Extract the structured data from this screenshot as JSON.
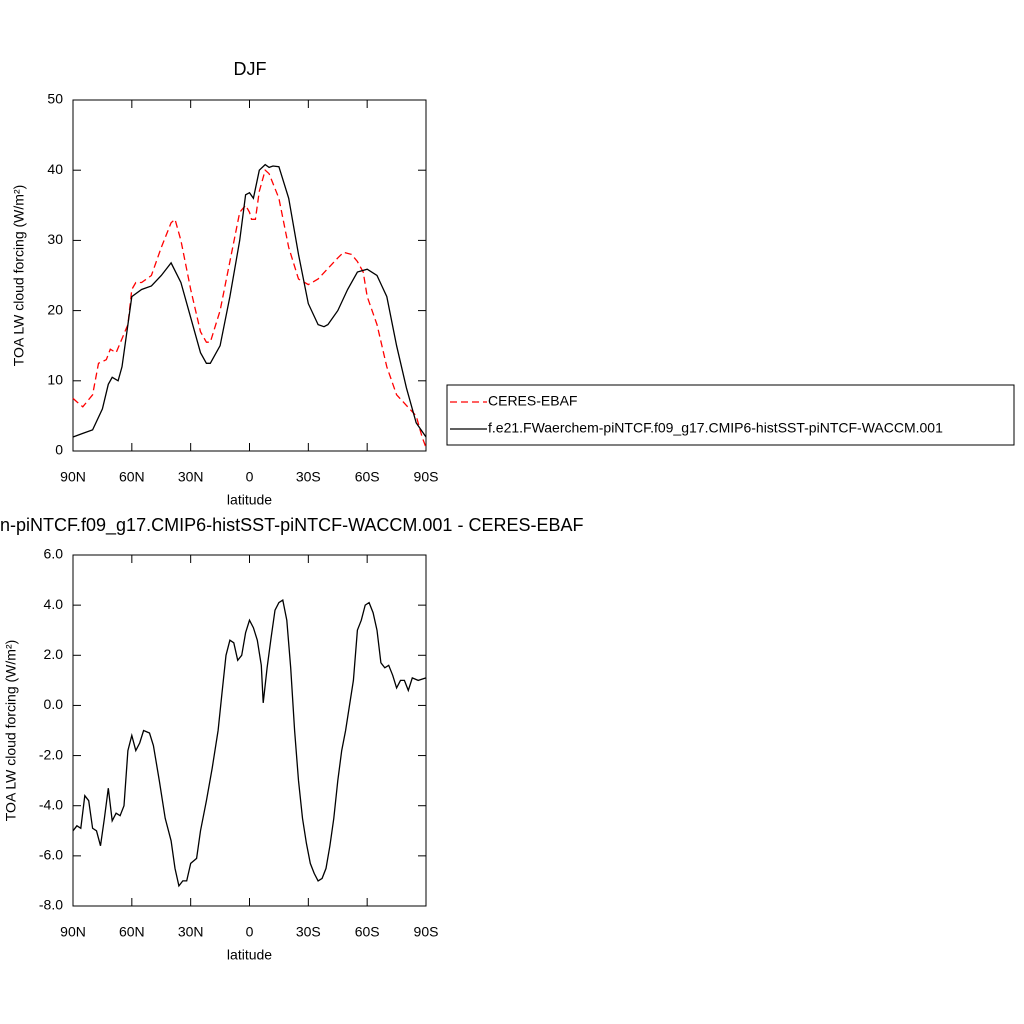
{
  "chart_data": [
    {
      "type": "line",
      "title": "DJF",
      "xlabel": "latitude",
      "ylabel": "TOA LW cloud forcing (W/m²)",
      "xlim": [
        90,
        -90
      ],
      "xticks": [
        {
          "value": 90,
          "label": "90N"
        },
        {
          "value": 60,
          "label": "60N"
        },
        {
          "value": 30,
          "label": "30N"
        },
        0,
        {
          "value": -30,
          "label": "30S"
        },
        {
          "value": -60,
          "label": "60S"
        },
        {
          "value": -90,
          "label": "90S"
        }
      ],
      "ylim": [
        0,
        50
      ],
      "yticks": [
        0,
        10,
        20,
        30,
        40,
        50
      ],
      "legend": "right",
      "series": [
        {
          "name": "CERES-EBAF",
          "color": "#ff0000",
          "line_style": "dashed",
          "x": [
            90,
            88,
            85,
            80,
            77,
            73,
            71,
            68,
            65,
            62,
            60,
            58,
            55,
            50,
            45,
            40,
            38,
            35,
            30,
            25,
            22,
            20,
            15,
            10,
            5,
            2,
            0,
            -1,
            -3,
            -5,
            -8,
            -10,
            -15,
            -20,
            -25,
            -30,
            -35,
            -40,
            -45,
            -48,
            -52,
            -55,
            -58,
            -60,
            -65,
            -70,
            -75,
            -80,
            -85,
            -88,
            -90
          ],
          "values": [
            7.5,
            7,
            6.3,
            8,
            12.5,
            13,
            14.5,
            14,
            16,
            18,
            23,
            24,
            24,
            25,
            29,
            32.5,
            33,
            30,
            23,
            17,
            15.5,
            15.5,
            20,
            27,
            34,
            35,
            34,
            33,
            33,
            37,
            40,
            39.5,
            36,
            29,
            24.5,
            23.7,
            24.5,
            26,
            27.5,
            28.3,
            28,
            27,
            25.5,
            22,
            18,
            12,
            8,
            6.5,
            5,
            2,
            0.5
          ]
        },
        {
          "name": "f.e21.FWaerchem-piNTCF.f09_g17.CMIP6-histSST-piNTCF-WACCM.001",
          "color": "#000000",
          "line_style": "solid",
          "x": [
            90,
            85,
            80,
            75,
            72,
            70,
            67,
            65,
            62,
            60,
            55,
            50,
            45,
            40,
            35,
            30,
            25,
            22,
            20,
            15,
            10,
            5,
            2,
            0,
            -2,
            -5,
            -8,
            -10,
            -12,
            -15,
            -20,
            -25,
            -30,
            -35,
            -38,
            -40,
            -45,
            -50,
            -55,
            -60,
            -65,
            -70,
            -75,
            -80,
            -85,
            -90
          ],
          "values": [
            2,
            2.5,
            3,
            6,
            9.5,
            10.5,
            10,
            12,
            18,
            22,
            23,
            23.5,
            25,
            26.8,
            24,
            19,
            14,
            12.5,
            12.5,
            15,
            22,
            30,
            36.5,
            36.8,
            36,
            40,
            40.8,
            40.4,
            40.6,
            40.5,
            36,
            28,
            21,
            18,
            17.7,
            18,
            20,
            23,
            25.5,
            25.9,
            25,
            22,
            15,
            9,
            4,
            2
          ]
        }
      ]
    },
    {
      "type": "line",
      "title": "n-piNTCF.f09_g17.CMIP6-histSST-piNTCF-WACCM.001 - CERES-EBAF",
      "xlabel": "latitude",
      "ylabel": "TOA LW cloud forcing (W/m²)",
      "xlim": [
        90,
        -90
      ],
      "xticks": [
        {
          "value": 90,
          "label": "90N"
        },
        {
          "value": 60,
          "label": "60N"
        },
        {
          "value": 30,
          "label": "30N"
        },
        0,
        {
          "value": -30,
          "label": "30S"
        },
        {
          "value": -60,
          "label": "60S"
        },
        {
          "value": -90,
          "label": "90S"
        }
      ],
      "ylim": [
        -8,
        6
      ],
      "yticks": [
        {
          "value": -8,
          "label": "-8.0"
        },
        {
          "value": -6,
          "label": "-6.0"
        },
        {
          "value": -4,
          "label": "-4.0"
        },
        {
          "value": -2,
          "label": "-2.0"
        },
        {
          "value": 0,
          "label": "0.0"
        },
        {
          "value": 2,
          "label": "2.0"
        },
        {
          "value": 4,
          "label": "4.0"
        },
        {
          "value": 6,
          "label": "6.0"
        }
      ],
      "series": [
        {
          "color": "#000000",
          "line_style": "solid",
          "x": [
            90,
            88,
            86,
            84,
            82,
            80,
            78,
            76,
            74,
            72,
            70,
            68,
            66,
            64,
            62,
            60,
            58,
            56,
            54,
            51,
            49,
            46,
            43,
            40,
            38,
            36,
            34,
            32,
            30,
            27,
            25,
            22,
            19,
            16,
            14,
            12,
            10,
            8,
            6,
            4,
            2,
            0,
            -2,
            -4,
            -6,
            -7,
            -9,
            -11,
            -13,
            -15,
            -17,
            -19,
            -21,
            -23,
            -25,
            -27,
            -29,
            -31,
            -33,
            -35,
            -37,
            -39,
            -41,
            -43,
            -45,
            -47,
            -49,
            -51,
            -53,
            -55,
            -57,
            -59,
            -61,
            -63,
            -65,
            -67,
            -69,
            -71,
            -73,
            -75,
            -77,
            -79,
            -81,
            -83,
            -86,
            -90
          ],
          "values": [
            -5,
            -4.8,
            -4.9,
            -3.6,
            -3.8,
            -4.9,
            -5,
            -5.6,
            -4.5,
            -3.3,
            -4.6,
            -4.3,
            -4.4,
            -4,
            -1.8,
            -1.2,
            -1.8,
            -1.5,
            -1,
            -1.1,
            -1.6,
            -3,
            -4.5,
            -5.4,
            -6.5,
            -7.2,
            -7,
            -7,
            -6.3,
            -6.1,
            -5,
            -3.8,
            -2.5,
            -1,
            0.5,
            2,
            2.6,
            2.5,
            1.8,
            2,
            2.9,
            3.4,
            3.1,
            2.6,
            1.6,
            0.1,
            1.5,
            2.7,
            3.8,
            4.1,
            4.2,
            3.4,
            1.5,
            -1,
            -3,
            -4.5,
            -5.5,
            -6.3,
            -6.7,
            -7,
            -6.9,
            -6.5,
            -5.6,
            -4.5,
            -3,
            -1.8,
            -1,
            0,
            1,
            3,
            3.4,
            4,
            4.1,
            3.7,
            3,
            1.7,
            1.5,
            1.6,
            1.2,
            0.7,
            1,
            1,
            0.6,
            1.1,
            1,
            1.1
          ]
        }
      ]
    }
  ]
}
